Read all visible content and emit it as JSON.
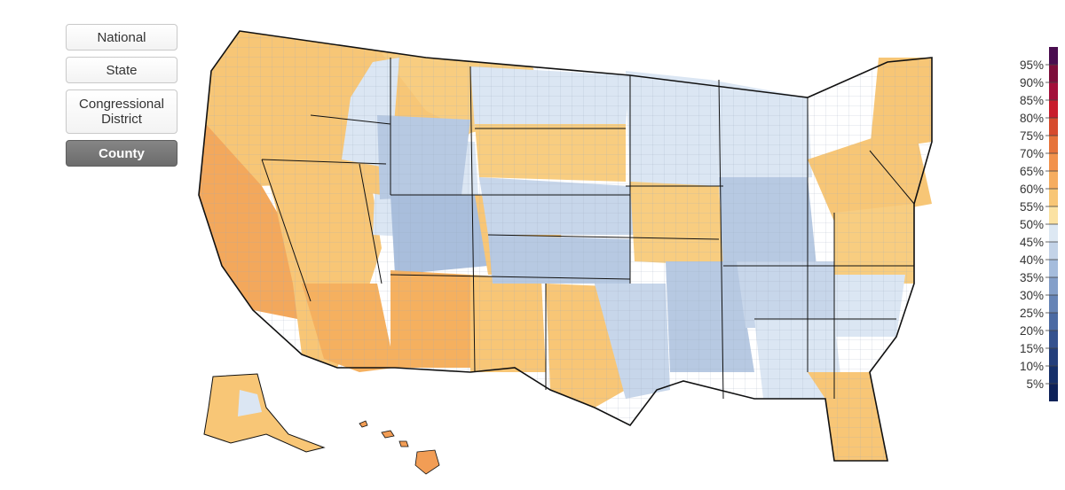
{
  "nav": {
    "buttons": [
      {
        "label": "National",
        "active": false
      },
      {
        "label": "State",
        "active": false
      },
      {
        "label": "Congressional District",
        "active": false
      },
      {
        "label": "County",
        "active": true
      }
    ]
  },
  "map": {
    "level": "County",
    "colors": {
      "state_border": "#111111",
      "county_border": "#9aa8bc",
      "orange_high": "#f29d55",
      "orange_mid": "#f7bd6b",
      "yellow_low": "#fbdc93",
      "light_blue": "#dbe6f3",
      "mid_blue": "#b7c9e2",
      "deep_blue": "#9fb6d6"
    }
  },
  "legend": {
    "labels": [
      "95%",
      "90%",
      "85%",
      "80%",
      "75%",
      "70%",
      "65%",
      "60%",
      "55%",
      "50%",
      "45%",
      "40%",
      "35%",
      "30%",
      "25%",
      "20%",
      "15%",
      "10%",
      "5%"
    ],
    "colors": [
      "#4a0d4f",
      "#7d0e3a",
      "#a3103a",
      "#c81d2c",
      "#d64b2d",
      "#e6733a",
      "#f2924c",
      "#f6ad5f",
      "#f8c676",
      "#fbe2a3",
      "#dde8f3",
      "#c3d3e8",
      "#a5bcdc",
      "#849fc9",
      "#6684b6",
      "#4b6aa3",
      "#35528e",
      "#243f7b",
      "#16306a",
      "#0e2258"
    ]
  }
}
